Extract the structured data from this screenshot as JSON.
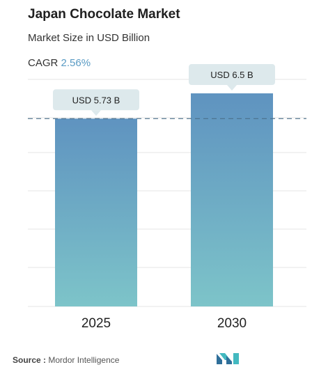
{
  "header": {
    "title": "Japan Chocolate Market",
    "subtitle": "Market Size in USD Billion",
    "cagr_label": "CAGR",
    "cagr_value": "2.56%"
  },
  "chart_data": {
    "type": "bar",
    "categories": [
      "2025",
      "2030"
    ],
    "values": [
      5.73,
      6.5
    ],
    "data_labels": [
      "USD 5.73 B",
      "USD 6.5 B"
    ],
    "reference_line": 5.73,
    "grid": true,
    "colors": {
      "bar_top": "#5f93c0",
      "bar_bottom": "#7dc4c9",
      "label_bg": "#dde9ec",
      "dashed_line": "#4b6f8a"
    }
  },
  "footer": {
    "source_label": "Source :",
    "source_value": "Mordor Intelligence",
    "logo_icon": "mordor-intelligence-logo-icon"
  }
}
